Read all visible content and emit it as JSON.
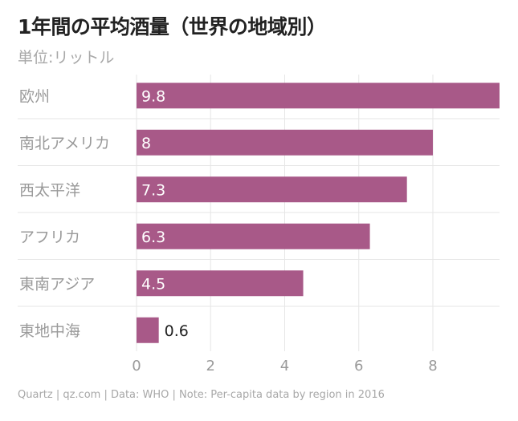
{
  "title": "1年間の平均酒量（世界の地域別）",
  "subtitle": "単位:リットル",
  "footer": "Quartz | qz.com | Data: WHO | Note: Per-capita data by region in 2016",
  "colors": {
    "bar": "#a85988",
    "grid": "#e6e6e6",
    "category_text": "#9a9a9a",
    "tick_text": "#9a9a9a",
    "label_inside": "#ffffff",
    "label_outside": "#222222"
  },
  "chart_data": {
    "type": "bar",
    "orientation": "horizontal",
    "title": "1年間の平均酒量（世界の地域別）",
    "subtitle": "単位:リットル",
    "categories": [
      "欧州",
      "南北アメリカ",
      "西太平洋",
      "アフリカ",
      "東南アジア",
      "東地中海"
    ],
    "values": [
      9.8,
      8,
      7.3,
      6.3,
      4.5,
      0.6
    ],
    "value_labels": [
      "9.8",
      "8",
      "7.3",
      "6.3",
      "4.5",
      "0.6"
    ],
    "xlim": [
      0,
      9.8
    ],
    "xticks": [
      0,
      2,
      4,
      6,
      8
    ],
    "xtick_labels": [
      "0",
      "2",
      "4",
      "6",
      "8"
    ],
    "grid": true
  }
}
